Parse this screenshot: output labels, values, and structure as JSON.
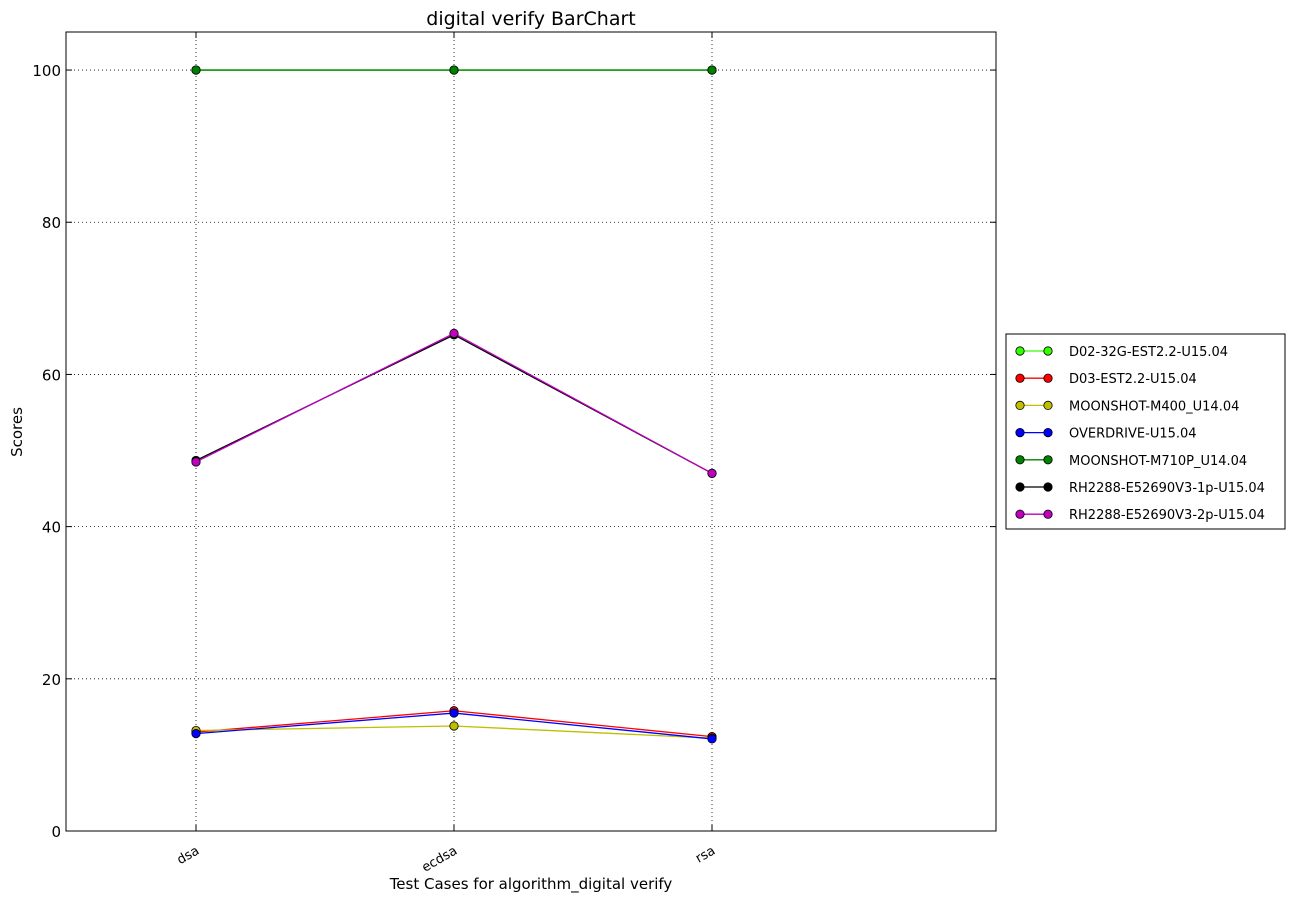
{
  "chart_data": {
    "type": "line",
    "title": "digital verify BarChart",
    "xlabel": "Test Cases for algorithm_digital verify",
    "ylabel": "Scores",
    "categories": [
      "dsa",
      "ecdsa",
      "rsa"
    ],
    "ylim": [
      0,
      105
    ],
    "yticks": [
      0,
      20,
      40,
      60,
      80,
      100
    ],
    "grid": true,
    "legend_position": "right",
    "series": [
      {
        "name": "D02-32G-EST2.2-U15.04",
        "color": "#33ff00",
        "values": [
          100,
          100,
          100
        ]
      },
      {
        "name": "D03-EST2.2-U15.04",
        "color": "#ff0000",
        "values": [
          13,
          15.8,
          12.4
        ]
      },
      {
        "name": "MOONSHOT-M400_U14.04",
        "color": "#bfbf00",
        "values": [
          13.2,
          13.8,
          12.2
        ]
      },
      {
        "name": "OVERDRIVE-U15.04",
        "color": "#0000ff",
        "values": [
          12.8,
          15.5,
          12.1
        ]
      },
      {
        "name": "MOONSHOT-M710P_U14.04",
        "color": "#008000",
        "values": [
          100,
          100,
          100
        ]
      },
      {
        "name": "RH2288-E52690V3-1p-U15.04",
        "color": "#000000",
        "values": [
          48.7,
          65.2,
          47
        ]
      },
      {
        "name": "RH2288-E52690V3-2p-U15.04",
        "color": "#bf00bf",
        "values": [
          48.5,
          65.4,
          47
        ]
      }
    ]
  }
}
